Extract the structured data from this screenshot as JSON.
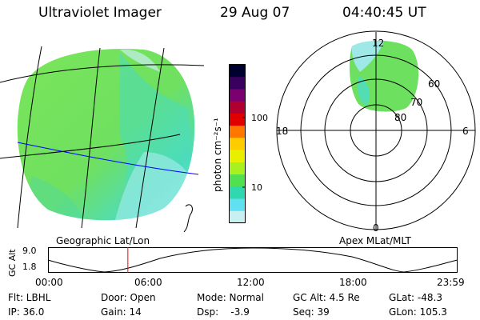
{
  "header": {
    "instrument": "Ultraviolet Imager",
    "date": "29 Aug 07",
    "time": "04:40:45 UT"
  },
  "colorbar": {
    "label": "photon cm⁻²s⁻¹",
    "ticks": [
      "100",
      "10"
    ],
    "colors": [
      "#000030",
      "#3a0060",
      "#7a0070",
      "#b00030",
      "#e00000",
      "#ff7700",
      "#ffcc00",
      "#e8f000",
      "#a8f020",
      "#50e050",
      "#30d8b0",
      "#60e0f0",
      "#c8f0f0"
    ]
  },
  "left_map": {
    "caption": "Geographic Lat/Lon",
    "grid_color": "#000000",
    "highlight_line_color": "#0000ff"
  },
  "right_map": {
    "caption": "Apex MLat/MLT",
    "mlt_labels": {
      "top": "12",
      "left": "18",
      "right": "6",
      "bottom": "0"
    },
    "lat_labels": [
      "60",
      "70",
      "80"
    ]
  },
  "timeline": {
    "ylabel": "GC Alt",
    "ymax": "9.0",
    "ymin": "1.8",
    "xticks": [
      "00:00",
      "06:00",
      "12:00",
      "18:00",
      "23:59"
    ],
    "current_time_fraction": 0.195,
    "marker_color": "#ff0000"
  },
  "footer": {
    "row1": [
      "Flt: LBHL",
      "Door: Open",
      "Mode: Normal",
      "GC Alt: 4.5 Re",
      "GLat: -48.3"
    ],
    "row2": [
      "IP: 36.0",
      "Gain: 14",
      "Dsp:    -3.9",
      "Seq: 39",
      "GLon: 105.3"
    ]
  }
}
